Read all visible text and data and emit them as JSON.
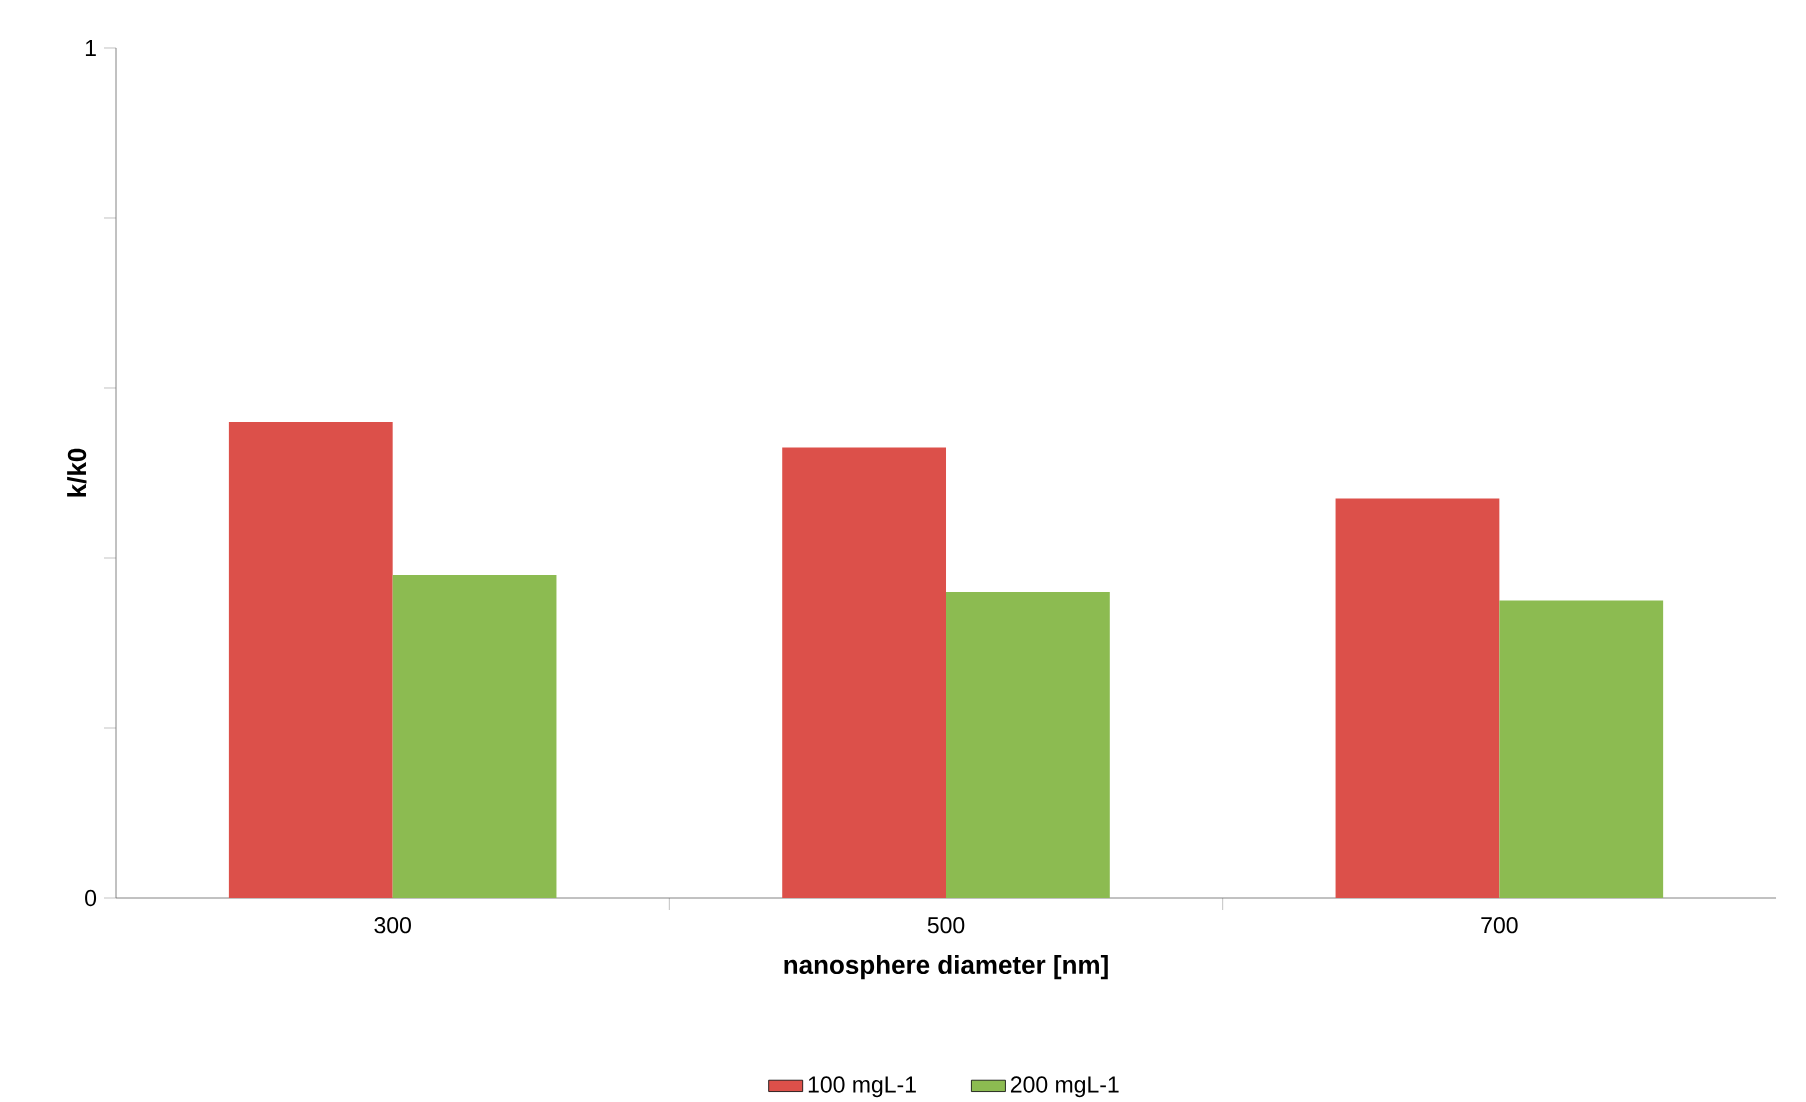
{
  "chart_data": {
    "type": "bar",
    "xlabel": "nanosphere diameter [nm]",
    "ylabel": "k/k0",
    "categories": [
      "300",
      "500",
      "700"
    ],
    "series": [
      {
        "name": "100 mgL-1",
        "color": "#dc504a",
        "values": [
          0.56,
          0.53,
          0.47
        ]
      },
      {
        "name": "200 mgL-1",
        "color": "#8cbb51",
        "values": [
          0.38,
          0.36,
          0.35
        ]
      }
    ],
    "ylim": [
      0,
      1
    ],
    "yticks": [
      0,
      {
        "value": 0.2,
        "label": null
      },
      {
        "value": 0.4,
        "label": null
      },
      {
        "value": 0.6,
        "label": null
      },
      {
        "value": 0.8,
        "label": null
      },
      1
    ],
    "legend": "bottom"
  }
}
